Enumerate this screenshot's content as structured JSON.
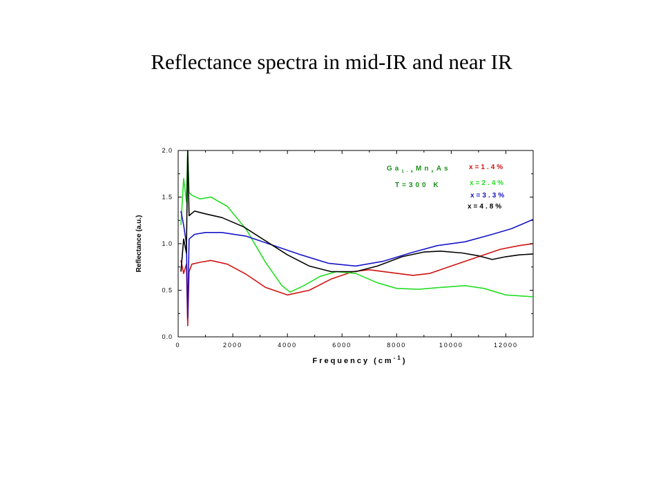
{
  "page_title": "Reflectance spectra in mid-IR and near IR",
  "chart_data": {
    "type": "line",
    "xlabel_main": "Frequency (cm",
    "xlabel_sup": "-1",
    "xlabel_end": ")",
    "ylabel": "Reflectance (a.u.)",
    "xlim": [
      0,
      13000
    ],
    "ylim": [
      0.0,
      2.0
    ],
    "x_ticks": [
      0,
      2000,
      4000,
      6000,
      8000,
      10000,
      12000
    ],
    "y_ticks": [
      0.0,
      0.5,
      1.0,
      1.5,
      2.0
    ],
    "x_tick_labels": [
      "0",
      "2000",
      "4000",
      "6000",
      "8000",
      "10000",
      "12000"
    ],
    "y_tick_labels": [
      "0.0",
      "0.5",
      "1.0",
      "1.5",
      "2.0"
    ],
    "grid": false,
    "annotation_material": {
      "base": "Ga",
      "sub1": "1-x",
      "mid": "Mn",
      "sub2": "x",
      "end": "As",
      "color": "#1a8f1a"
    },
    "annotation_temperature": {
      "text": "T=300 K",
      "color": "#1a8f1a"
    },
    "series": [
      {
        "name": "x=1.4%",
        "color": "#d01010",
        "points": [
          [
            100,
            0.82
          ],
          [
            200,
            0.68
          ],
          [
            300,
            0.78
          ],
          [
            350,
            0.12
          ],
          [
            400,
            0.7
          ],
          [
            500,
            0.78
          ],
          [
            800,
            0.8
          ],
          [
            1200,
            0.82
          ],
          [
            1800,
            0.78
          ],
          [
            2500,
            0.67
          ],
          [
            3200,
            0.53
          ],
          [
            4000,
            0.45
          ],
          [
            4800,
            0.5
          ],
          [
            5600,
            0.62
          ],
          [
            6400,
            0.7
          ],
          [
            7000,
            0.72
          ],
          [
            7800,
            0.69
          ],
          [
            8600,
            0.66
          ],
          [
            9200,
            0.68
          ],
          [
            10000,
            0.76
          ],
          [
            11000,
            0.86
          ],
          [
            11800,
            0.94
          ],
          [
            12500,
            0.98
          ],
          [
            13000,
            1.0
          ]
        ]
      },
      {
        "name": "x=2.4%",
        "color": "#22dd22",
        "points": [
          [
            100,
            1.2
          ],
          [
            200,
            1.7
          ],
          [
            300,
            1.45
          ],
          [
            350,
            2.0
          ],
          [
            400,
            1.55
          ],
          [
            500,
            1.52
          ],
          [
            800,
            1.48
          ],
          [
            1200,
            1.5
          ],
          [
            1800,
            1.4
          ],
          [
            2500,
            1.15
          ],
          [
            3200,
            0.8
          ],
          [
            3800,
            0.55
          ],
          [
            4100,
            0.48
          ],
          [
            4600,
            0.55
          ],
          [
            5200,
            0.65
          ],
          [
            5800,
            0.7
          ],
          [
            6500,
            0.68
          ],
          [
            7300,
            0.58
          ],
          [
            8000,
            0.52
          ],
          [
            8800,
            0.51
          ],
          [
            9600,
            0.53
          ],
          [
            10500,
            0.55
          ],
          [
            11200,
            0.52
          ],
          [
            12000,
            0.45
          ],
          [
            13000,
            0.43
          ]
        ]
      },
      {
        "name": "x=3.3%",
        "color": "#1414c8",
        "points": [
          [
            100,
            1.35
          ],
          [
            200,
            1.2
          ],
          [
            300,
            1.0
          ],
          [
            350,
            0.2
          ],
          [
            400,
            1.05
          ],
          [
            600,
            1.1
          ],
          [
            1000,
            1.12
          ],
          [
            1600,
            1.12
          ],
          [
            2500,
            1.08
          ],
          [
            3500,
            0.98
          ],
          [
            4500,
            0.88
          ],
          [
            5500,
            0.79
          ],
          [
            6500,
            0.76
          ],
          [
            7500,
            0.81
          ],
          [
            8500,
            0.9
          ],
          [
            9500,
            0.98
          ],
          [
            10500,
            1.02
          ],
          [
            11500,
            1.1
          ],
          [
            12200,
            1.16
          ],
          [
            13000,
            1.26
          ]
        ]
      },
      {
        "name": "x=4.8%",
        "color": "#000000",
        "points": [
          [
            100,
            0.7
          ],
          [
            200,
            1.05
          ],
          [
            300,
            0.9
          ],
          [
            350,
            2.0
          ],
          [
            400,
            1.3
          ],
          [
            600,
            1.35
          ],
          [
            1000,
            1.32
          ],
          [
            1600,
            1.28
          ],
          [
            2400,
            1.18
          ],
          [
            3200,
            1.03
          ],
          [
            4000,
            0.88
          ],
          [
            4800,
            0.76
          ],
          [
            5600,
            0.7
          ],
          [
            6500,
            0.7
          ],
          [
            7300,
            0.76
          ],
          [
            8200,
            0.86
          ],
          [
            9000,
            0.91
          ],
          [
            9600,
            0.92
          ],
          [
            10400,
            0.9
          ],
          [
            11000,
            0.87
          ],
          [
            11500,
            0.83
          ],
          [
            12000,
            0.86
          ],
          [
            12500,
            0.88
          ],
          [
            13000,
            0.89
          ]
        ]
      }
    ]
  }
}
